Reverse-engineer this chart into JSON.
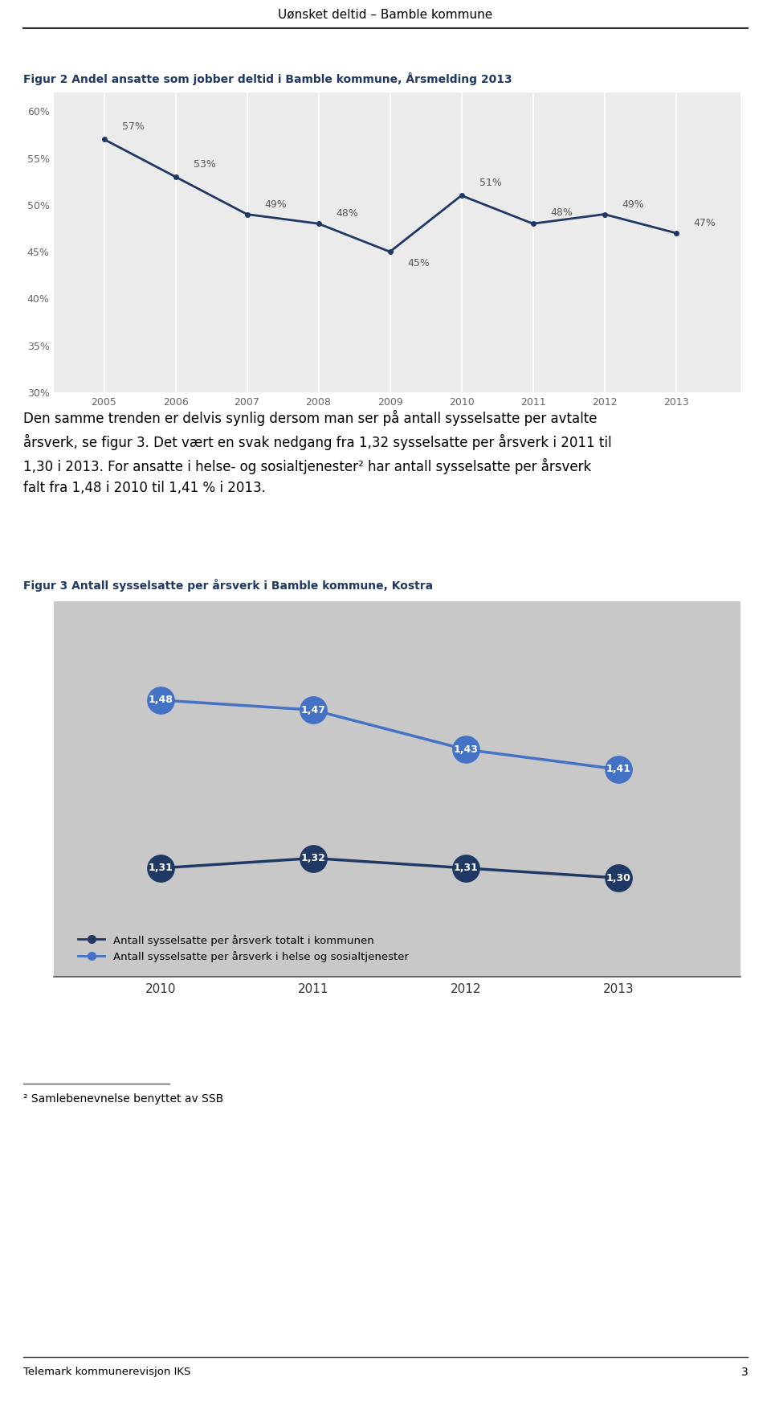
{
  "page_title": "Uønsket deltid – Bamble kommune",
  "fig2_title": "Figur 2 Andel ansatte som jobber deltid i Bamble kommune, Årsmelding 2013",
  "fig2_years": [
    2005,
    2006,
    2007,
    2008,
    2009,
    2010,
    2011,
    2012,
    2013
  ],
  "fig2_values": [
    57,
    53,
    49,
    48,
    45,
    51,
    48,
    49,
    47
  ],
  "fig2_ylim": [
    30,
    62
  ],
  "fig2_yticks": [
    30,
    35,
    40,
    45,
    50,
    55,
    60
  ],
  "fig2_ytick_labels": [
    "30%",
    "35%",
    "40%",
    "45%",
    "50%",
    "55%",
    "60%"
  ],
  "fig2_line_color": "#1f3864",
  "fig2_bg_color": "#ebebeb",
  "fig3_title": "Figur 3 Antall sysselsatte per årsverk i Bamble kommune, Kostra",
  "fig3_years": [
    2010,
    2011,
    2012,
    2013
  ],
  "fig3_series1_values": [
    1.31,
    1.32,
    1.31,
    1.3
  ],
  "fig3_series2_values": [
    1.48,
    1.47,
    1.43,
    1.41
  ],
  "fig3_series1_color": "#1f3864",
  "fig3_series2_color": "#4472c4",
  "fig3_bg_color": "#c8c8c8",
  "fig3_legend1": "Antall sysselsatte per årsverk totalt i kommunen",
  "fig3_legend2": "Antall sysselsatte per årsverk i helse og sosialtjenester",
  "body_text": "Den samme trenden er delvis synlig dersom man ser på antall sysselsatte per avtalte årsverk, se figur 3. Det vært en svak nedgang fra 1,32 sysselsatte per årsverk i 2011 til\n1,30 i 2013. For ansatte i helse- og sosialtjenester² har antall sysselsatte per årsverk\nfalt fra 1,48 i 2010 til 1,41 % i 2013.",
  "footnote_text": "² Samlebenevnelse benyttet av SSB",
  "footer_text": "Telemark kommunerevisjon IKS",
  "page_number": "3"
}
